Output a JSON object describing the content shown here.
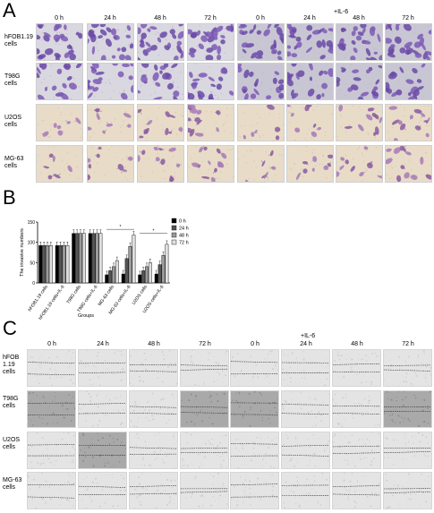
{
  "panel_a": {
    "letter": "A",
    "il6_label": "+IL-6",
    "time_points": [
      "0 h",
      "24 h",
      "48 h",
      "72 h",
      "0 h",
      "24 h",
      "48 h",
      "72 h"
    ],
    "rows": [
      {
        "label_l1": "hFOB1.19",
        "label_l2": "cells",
        "style": "dense-purple"
      },
      {
        "label_l1": "T98G",
        "label_l2": "cells",
        "style": "dense-purple"
      },
      {
        "label_l1": "U2OS",
        "label_l2": "cells",
        "style": "sparse-beige"
      },
      {
        "label_l1": "MG-63",
        "label_l2": "cells",
        "style": "sparse-beige"
      }
    ]
  },
  "panel_b": {
    "letter": "B"
  },
  "panel_c": {
    "letter": "C",
    "il6_label": "+IL-6",
    "time_points": [
      "0 h",
      "24 h",
      "48 h",
      "72 h",
      "0 h",
      "24 h",
      "48 h",
      "72 h"
    ],
    "rows": [
      {
        "label_l1": "hFOB",
        "label_l2": "1.19",
        "label_l3": "cells"
      },
      {
        "label_l1": "T98G",
        "label_l2": "cells",
        "label_l3": ""
      },
      {
        "label_l1": "U2OS",
        "label_l2": "cells",
        "label_l3": ""
      },
      {
        "label_l1": "MG-63",
        "label_l2": "cells",
        "label_l3": ""
      }
    ]
  },
  "chart_data": {
    "type": "bar",
    "title": "",
    "xlabel": "Groups",
    "ylabel": "The invasive numbers",
    "ylim": [
      0,
      150
    ],
    "yticks": [
      0,
      50,
      100,
      150
    ],
    "categories": [
      "hFOB1.19 cells",
      "hFOB1.19 cells+IL-6",
      "T98G cells",
      "T98G cells+IL-6",
      "MG-63 cells",
      "MG-63 cells+IL-6",
      "U2OS cells",
      "U2OS cells+IL-6"
    ],
    "series": [
      {
        "name": "0 h",
        "color": "#000000",
        "values": [
          92,
          92,
          122,
          122,
          20,
          22,
          20,
          22
        ]
      },
      {
        "name": "24 h",
        "color": "#555555",
        "values": [
          92,
          92,
          122,
          122,
          30,
          60,
          30,
          45
        ]
      },
      {
        "name": "48 h",
        "color": "#9a9a9a",
        "values": [
          92,
          92,
          122,
          122,
          40,
          90,
          40,
          68
        ]
      },
      {
        "name": "72 h",
        "color": "#e0e0e0",
        "values": [
          92,
          92,
          122,
          122,
          55,
          118,
          50,
          95
        ]
      }
    ],
    "significance": [
      "*",
      "*"
    ],
    "legend_position": "right",
    "grid": false
  }
}
